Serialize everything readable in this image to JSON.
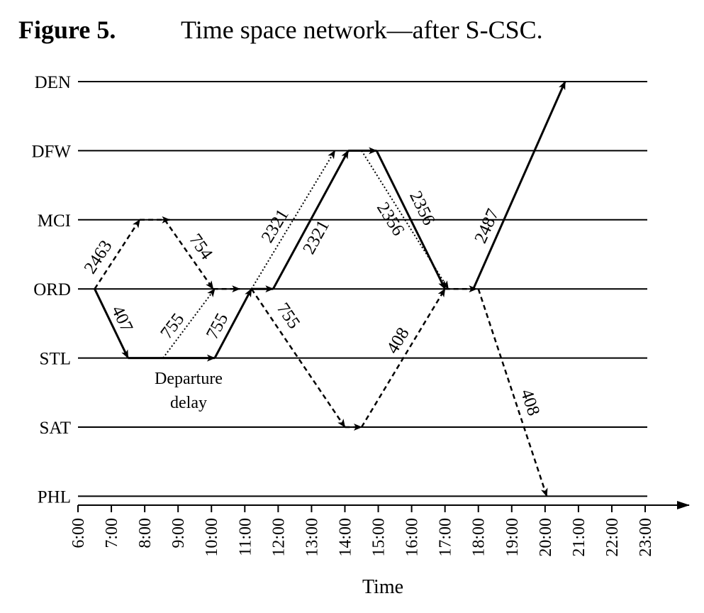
{
  "figure": {
    "label": "Figure 5.",
    "title": "Time space network—after S-CSC."
  },
  "axis": {
    "xlabel": "Time",
    "tick_labels": [
      "6:00",
      "7:00",
      "8:00",
      "9:00",
      "10:00",
      "11:00",
      "12:00",
      "13:00",
      "14:00",
      "15:00",
      "16:00",
      "17:00",
      "18:00",
      "19:00",
      "20:00",
      "21:00",
      "22:00",
      "23:00"
    ],
    "tick_hours": [
      6,
      7,
      8,
      9,
      10,
      11,
      12,
      13,
      14,
      15,
      16,
      17,
      18,
      19,
      20,
      21,
      22,
      23
    ]
  },
  "stations": [
    "DEN",
    "DFW",
    "MCI",
    "ORD",
    "STL",
    "SAT",
    "PHL"
  ],
  "legend_styles": {
    "solid": "solid",
    "dashed": "dashed",
    "dotted": "dotted"
  },
  "arcs": [
    {
      "flight": "2463",
      "from": "ORD",
      "to": "MCI",
      "dep": 6.5,
      "arr": 7.85,
      "style": "dashed",
      "label": "2463"
    },
    {
      "flight": "",
      "from": "MCI",
      "to": "MCI",
      "dep": 7.85,
      "arr": 8.75,
      "style": "dashed",
      "label": ""
    },
    {
      "flight": "754",
      "from": "MCI",
      "to": "ORD",
      "dep": 8.6,
      "arr": 10.05,
      "style": "dashed",
      "label": "754"
    },
    {
      "flight": "407",
      "from": "ORD",
      "to": "STL",
      "dep": 6.5,
      "arr": 7.5,
      "style": "solid",
      "label": "407"
    },
    {
      "flight": "",
      "from": "STL",
      "to": "STL",
      "dep": 7.5,
      "arr": 10.1,
      "style": "solid",
      "label": ""
    },
    {
      "flight": "755",
      "from": "STL",
      "to": "ORD",
      "dep": 8.55,
      "arr": 10.1,
      "style": "dotted",
      "label": "755"
    },
    {
      "flight": "755",
      "from": "STL",
      "to": "ORD",
      "dep": 10.1,
      "arr": 11.2,
      "style": "solid",
      "label": "755"
    },
    {
      "flight": "",
      "from": "ORD",
      "to": "ORD",
      "dep": 10.05,
      "arr": 10.85,
      "style": "dashed",
      "label": ""
    },
    {
      "flight": "",
      "from": "ORD",
      "to": "ORD",
      "dep": 11.2,
      "arr": 11.85,
      "style": "solid",
      "label": ""
    },
    {
      "flight": "2321",
      "from": "ORD",
      "to": "DFW",
      "dep": 11.2,
      "arr": 13.7,
      "style": "dotted",
      "label": "2321"
    },
    {
      "flight": "2321",
      "from": "ORD",
      "to": "DFW",
      "dep": 11.85,
      "arr": 14.1,
      "style": "solid",
      "label": "2321"
    },
    {
      "flight": "",
      "from": "DFW",
      "to": "DFW",
      "dep": 14.1,
      "arr": 14.95,
      "style": "solid",
      "label": ""
    },
    {
      "flight": "2356",
      "from": "DFW",
      "to": "ORD",
      "dep": 14.5,
      "arr": 17.1,
      "style": "dotted",
      "label": "2356"
    },
    {
      "flight": "2356",
      "from": "DFW",
      "to": "ORD",
      "dep": 14.95,
      "arr": 17.0,
      "style": "solid",
      "label": "2356"
    },
    {
      "flight": "",
      "from": "ORD",
      "to": "ORD",
      "dep": 17.0,
      "arr": 17.95,
      "style": "dashed",
      "label": ""
    },
    {
      "flight": "2487",
      "from": "ORD",
      "to": "DEN",
      "dep": 17.85,
      "arr": 20.6,
      "style": "solid",
      "label": "2487"
    },
    {
      "flight": "755",
      "from": "ORD",
      "to": "SAT",
      "dep": 11.2,
      "arr": 14.0,
      "style": "dashed",
      "label": "755"
    },
    {
      "flight": "",
      "from": "SAT",
      "to": "SAT",
      "dep": 14.0,
      "arr": 14.5,
      "style": "dashed",
      "label": ""
    },
    {
      "flight": "408",
      "from": "SAT",
      "to": "ORD",
      "dep": 14.5,
      "arr": 17.0,
      "style": "dashed",
      "label": "408"
    },
    {
      "flight": "408",
      "from": "ORD",
      "to": "PHL",
      "dep": 18.0,
      "arr": 20.05,
      "style": "dashed",
      "label": "408"
    }
  ],
  "annotations": [
    {
      "id": "departure-delay",
      "lines": [
        "Departure",
        "delay"
      ]
    }
  ]
}
